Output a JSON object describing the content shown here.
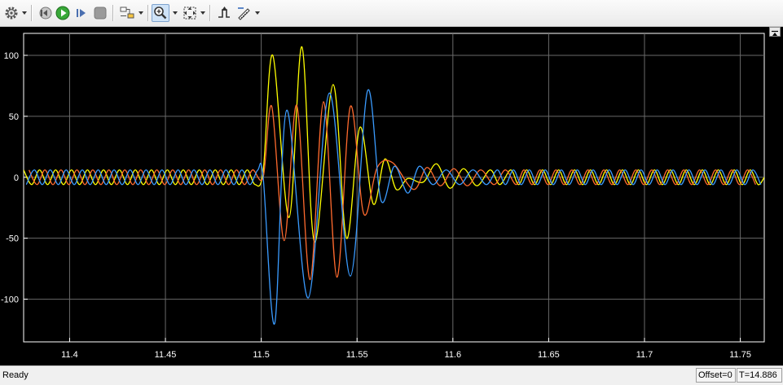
{
  "toolbar": {
    "buttons": [
      {
        "name": "settings-button",
        "icon": "gear-icon",
        "has_dropdown": true
      },
      {
        "name": "step-back-button",
        "icon": "step-back-icon",
        "has_dropdown": false
      },
      {
        "name": "run-button",
        "icon": "run-icon",
        "has_dropdown": false
      },
      {
        "name": "step-forward-button",
        "icon": "step-forward-icon",
        "has_dropdown": false
      },
      {
        "name": "stop-button",
        "icon": "stop-icon",
        "has_dropdown": false
      },
      {
        "name": "highlight-button",
        "icon": "highlight-block-icon",
        "has_dropdown": true
      },
      {
        "name": "zoom-button",
        "icon": "zoom-in-icon",
        "has_dropdown": true,
        "pressed": true
      },
      {
        "name": "autoscale-button",
        "icon": "autoscale-icon",
        "has_dropdown": true
      },
      {
        "name": "triggers-button",
        "icon": "triggers-icon",
        "has_dropdown": false
      },
      {
        "name": "measurements-button",
        "icon": "measurements-icon",
        "has_dropdown": true
      }
    ]
  },
  "chart_data": {
    "type": "line",
    "title": "",
    "xlabel": "",
    "ylabel": "",
    "xlim": [
      11.376,
      11.7625
    ],
    "ylim": [
      -135,
      118
    ],
    "xticks": [
      11.4,
      11.45,
      11.5,
      11.55,
      11.6,
      11.65,
      11.7,
      11.75
    ],
    "xtick_labels": [
      "11.4",
      "11.45",
      "11.5",
      "11.55",
      "11.6",
      "11.65",
      "11.7",
      "11.75"
    ],
    "yticks": [
      100,
      50,
      0,
      -50,
      -100
    ],
    "ytick_labels": [
      "100",
      "50",
      "0",
      "-50",
      "-100"
    ],
    "grid": true,
    "legend": "none",
    "background": "#000000",
    "axes_color": "#ffffff",
    "grid_color": "#6a6a6a",
    "series": [
      {
        "color": "#ffff00",
        "x": [
          11.376,
          11.3802,
          11.3843,
          11.3885,
          11.3927,
          11.3968,
          11.401,
          11.4052,
          11.4093,
          11.4135,
          11.4177,
          11.4218,
          11.426,
          11.4302,
          11.4343,
          11.4385,
          11.4427,
          11.4468,
          11.451,
          11.4552,
          11.4593,
          11.4635,
          11.4677,
          11.4718,
          11.476,
          11.4802,
          11.4843,
          11.4885,
          11.4927,
          11.4968,
          11.501,
          11.506,
          11.5145,
          11.5212,
          11.5278,
          11.5375,
          11.5445,
          11.5515,
          11.5585,
          11.5645,
          11.5705,
          11.5765,
          11.5845,
          11.5915,
          11.5985,
          11.6055,
          11.6125,
          11.6195,
          11.6245,
          11.6302,
          11.6343,
          11.6385,
          11.6427,
          11.6468,
          11.651,
          11.6552,
          11.6593,
          11.6635,
          11.6677,
          11.6718,
          11.676,
          11.6802,
          11.6843,
          11.6885,
          11.6927,
          11.6968,
          11.701,
          11.7052,
          11.7093,
          11.7135,
          11.7177,
          11.7218,
          11.726,
          11.7302,
          11.7343,
          11.7385,
          11.7427,
          11.7468,
          11.751,
          11.7552,
          11.7593,
          11.7625
        ],
        "y": [
          6,
          -6,
          6,
          -6,
          6,
          -6,
          6,
          -6,
          6,
          -6,
          6,
          -6,
          6,
          -6,
          6,
          -6,
          6,
          -6,
          6,
          -6,
          6,
          -6,
          6,
          -6,
          6,
          -6,
          6,
          -6,
          6,
          -6,
          5,
          100,
          -33,
          107,
          -53,
          76,
          -50,
          41,
          -22,
          15,
          -10,
          -1,
          -4,
          11,
          -9,
          7,
          -7,
          6,
          -6,
          6,
          -6,
          6,
          -6,
          6,
          -6,
          6,
          -6,
          6,
          -6,
          6,
          -6,
          6,
          -6,
          6,
          -6,
          6,
          -6,
          6,
          -6,
          6,
          -6,
          6,
          -6,
          6,
          -6,
          6,
          -6,
          6,
          -6,
          6,
          -6,
          0
        ]
      },
      {
        "color": "#ff6a2e",
        "x": [
          11.3788,
          11.383,
          11.3871,
          11.3913,
          11.3955,
          11.3996,
          11.4038,
          11.408,
          11.4121,
          11.4163,
          11.4205,
          11.4246,
          11.4288,
          11.433,
          11.4371,
          11.4413,
          11.4455,
          11.4496,
          11.4538,
          11.458,
          11.4621,
          11.4663,
          11.4705,
          11.4746,
          11.4788,
          11.483,
          11.4871,
          11.4913,
          11.4955,
          11.501,
          11.5055,
          11.512,
          11.5185,
          11.5255,
          11.5325,
          11.5395,
          11.5465,
          11.5535,
          11.5605,
          11.5685,
          11.5795,
          11.5865,
          11.5935,
          11.6005,
          11.6075,
          11.6145,
          11.6215,
          11.6274,
          11.633,
          11.6371,
          11.6413,
          11.6455,
          11.6496,
          11.6538,
          11.658,
          11.6621,
          11.6663,
          11.6705,
          11.6746,
          11.6788,
          11.683,
          11.6871,
          11.6913,
          11.6955,
          11.6996,
          11.7038,
          11.708,
          11.7121,
          11.7163,
          11.7205,
          11.7246,
          11.7288,
          11.733,
          11.7371,
          11.7413,
          11.7455,
          11.7496,
          11.7538,
          11.758
        ],
        "y": [
          6,
          -6,
          6,
          -6,
          6,
          -6,
          6,
          -6,
          6,
          -6,
          6,
          -6,
          6,
          -6,
          6,
          -6,
          6,
          -6,
          6,
          -6,
          6,
          -6,
          6,
          -6,
          6,
          -6,
          6,
          -6,
          6,
          0,
          58,
          -52,
          59,
          -84,
          62,
          -82,
          58,
          -30,
          8,
          12,
          -10,
          8,
          -7,
          7,
          -7,
          6,
          -6,
          6,
          -6,
          6,
          -6,
          6,
          -6,
          6,
          -6,
          6,
          -6,
          6,
          -6,
          6,
          -6,
          6,
          -6,
          6,
          -6,
          6,
          -6,
          6,
          -6,
          6,
          -6,
          6,
          -6,
          6,
          -6,
          6,
          -6,
          6,
          -6
        ]
      },
      {
        "color": "#3a9bff",
        "x": [
          11.3774,
          11.3816,
          11.3857,
          11.3899,
          11.3941,
          11.3982,
          11.4024,
          11.4066,
          11.4107,
          11.4149,
          11.4191,
          11.4232,
          11.4274,
          11.4316,
          11.4357,
          11.4399,
          11.4441,
          11.4482,
          11.4524,
          11.4566,
          11.4607,
          11.4649,
          11.4691,
          11.4732,
          11.4774,
          11.4816,
          11.4857,
          11.4899,
          11.4941,
          11.4982,
          11.501,
          11.507,
          11.5133,
          11.5245,
          11.5355,
          11.5465,
          11.5555,
          11.5625,
          11.5695,
          11.5765,
          11.5825,
          11.5895,
          11.5965,
          11.6035,
          11.6105,
          11.6175,
          11.6232,
          11.6274,
          11.6316,
          11.6357,
          11.6399,
          11.6441,
          11.6482,
          11.6524,
          11.6566,
          11.6607,
          11.6649,
          11.6691,
          11.6732,
          11.6774,
          11.6816,
          11.6857,
          11.6899,
          11.6941,
          11.6982,
          11.7024,
          11.7066,
          11.7107,
          11.7149,
          11.7191,
          11.7232,
          11.7274,
          11.7316,
          11.7357,
          11.7399,
          11.7441,
          11.7482,
          11.7524,
          11.7566,
          11.7607
        ],
        "y": [
          -6,
          6,
          -6,
          6,
          -6,
          6,
          -6,
          6,
          -6,
          6,
          -6,
          6,
          -6,
          6,
          -6,
          6,
          -6,
          6,
          -6,
          6,
          -6,
          6,
          -6,
          6,
          -6,
          6,
          -6,
          6,
          -6,
          6,
          0,
          -120,
          55,
          -99,
          69,
          -81,
          71,
          -19,
          9,
          -13,
          9,
          -6,
          6,
          -6,
          6,
          -6,
          6,
          -6,
          6,
          -6,
          6,
          -6,
          6,
          -6,
          6,
          -6,
          6,
          -6,
          6,
          -6,
          6,
          -6,
          6,
          -6,
          6,
          -6,
          6,
          -6,
          6,
          -6,
          6,
          -6,
          6,
          -6,
          6,
          -6,
          6,
          -6,
          6,
          -6
        ]
      }
    ]
  },
  "status": {
    "text": "Ready",
    "offset": "Offset=0",
    "time": "T=14.886"
  }
}
